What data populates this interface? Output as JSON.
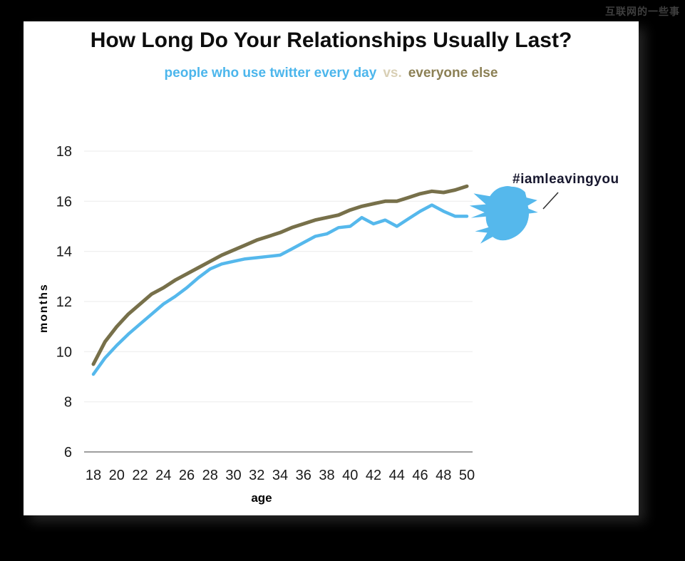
{
  "watermark": {
    "text": "互联网的一些事"
  },
  "header": {
    "title": "How Long Do Your Relationships Usually Last?",
    "subtitle": {
      "twitter_label": "people who use twitter every day",
      "vs_label": "vs.",
      "everyone_label": "everyone else"
    }
  },
  "chart_data": {
    "type": "line",
    "title": "How Long Do Your Relationships Usually Last?",
    "xlabel": "age",
    "ylabel": "months",
    "xlim": [
      18,
      50
    ],
    "ylim": [
      6,
      18
    ],
    "x_ticks": [
      18,
      20,
      22,
      24,
      26,
      28,
      30,
      32,
      34,
      36,
      38,
      40,
      42,
      44,
      46,
      48,
      50
    ],
    "y_ticks": [
      6,
      8,
      10,
      12,
      14,
      16,
      18
    ],
    "grid": "horizontal-light",
    "legend_position": "top-subtitle",
    "x": [
      18,
      19,
      20,
      21,
      22,
      23,
      24,
      25,
      26,
      27,
      28,
      29,
      30,
      31,
      32,
      33,
      34,
      35,
      36,
      37,
      38,
      39,
      40,
      41,
      42,
      43,
      44,
      45,
      46,
      47,
      48,
      49,
      50
    ],
    "series": [
      {
        "name": "people who use twitter every day",
        "color": "#55b8ec",
        "values": [
          9.1,
          9.75,
          10.25,
          10.7,
          11.1,
          11.5,
          11.9,
          12.2,
          12.55,
          12.95,
          13.3,
          13.5,
          13.6,
          13.7,
          13.75,
          13.8,
          13.85,
          14.1,
          14.35,
          14.6,
          14.7,
          14.95,
          15.0,
          15.35,
          15.1,
          15.25,
          15.0,
          15.3,
          15.6,
          15.85,
          15.6,
          15.4,
          15.4
        ]
      },
      {
        "name": "everyone else",
        "color": "#77704a",
        "values": [
          9.5,
          10.4,
          11.0,
          11.5,
          11.9,
          12.3,
          12.55,
          12.85,
          13.1,
          13.35,
          13.6,
          13.85,
          14.05,
          14.25,
          14.45,
          14.6,
          14.75,
          14.95,
          15.1,
          15.25,
          15.35,
          15.45,
          15.65,
          15.8,
          15.9,
          16.0,
          16.0,
          16.15,
          16.3,
          16.4,
          16.35,
          16.45,
          16.6
        ]
      }
    ],
    "annotation": {
      "text": "#iamleavingyou",
      "icon": "twitter-bird",
      "icon_color": "#55b8ec"
    },
    "colors": {
      "grid": "#ebebeb",
      "axis": "#7f7f7f",
      "tick_text": "#1a1a1a",
      "subtitle_twitter": "#4cb6ec",
      "subtitle_vs": "#d9d0b6",
      "subtitle_everyone": "#8c8055",
      "annotation_text": "#17172e",
      "background": "#ffffff",
      "page_background": "#000000"
    }
  }
}
